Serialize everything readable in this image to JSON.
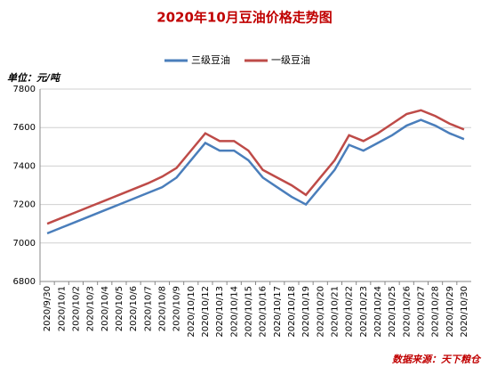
{
  "chart_data": {
    "type": "line",
    "title": "2020年10月豆油价格走势图",
    "y_axis_label": "单位：元/吨",
    "source": "数据来源：天下粮仓",
    "categories": [
      "2020/9/30",
      "2020/10/1",
      "2020/10/2",
      "2020/10/3",
      "2020/10/4",
      "2020/10/5",
      "2020/10/6",
      "2020/10/7",
      "2020/10/8",
      "2020/10/9",
      "2020/10/10",
      "2020/10/12",
      "2020/10/13",
      "2020/10/14",
      "2020/10/15",
      "2020/10/16",
      "2020/10/17",
      "2020/10/18",
      "2020/10/19",
      "2020/10/20",
      "2020/10/21",
      "2020/10/22",
      "2020/10/23",
      "2020/10/24",
      "2020/10/25",
      "2020/10/26",
      "2020/10/27",
      "2020/10/28",
      "2020/10/29",
      "2020/10/30"
    ],
    "series": [
      {
        "name": "三级豆油",
        "color": "#4a7ebb",
        "values": [
          7050,
          7080,
          7110,
          7140,
          7170,
          7200,
          7230,
          7260,
          7290,
          7340,
          7430,
          7520,
          7480,
          7480,
          7430,
          7340,
          7290,
          7240,
          7200,
          7290,
          7380,
          7510,
          7480,
          7520,
          7560,
          7610,
          7640,
          7610,
          7570,
          7540
        ]
      },
      {
        "name": "一级豆油",
        "color": "#be4b48",
        "values": [
          7100,
          7130,
          7160,
          7190,
          7220,
          7250,
          7280,
          7310,
          7345,
          7390,
          7480,
          7570,
          7530,
          7530,
          7480,
          7380,
          7340,
          7300,
          7250,
          7340,
          7430,
          7560,
          7530,
          7570,
          7620,
          7670,
          7690,
          7660,
          7620,
          7590
        ]
      }
    ],
    "ylim": [
      6800,
      7800
    ],
    "yticks": [
      6800,
      7000,
      7200,
      7400,
      7600,
      7800
    ],
    "grid": true
  }
}
